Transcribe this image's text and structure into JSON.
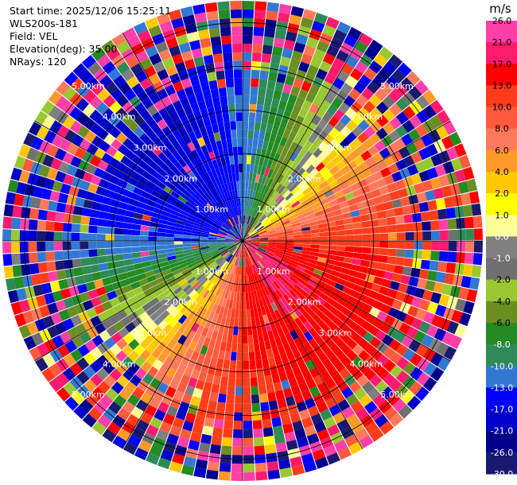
{
  "header": {
    "start_time": "Start time: 2025/12/06 15:25:11",
    "instrument": "WLS200s-181",
    "field": "Field: VEL",
    "elevation": "Elevation(deg): 35.00",
    "nrays": "NRays: 120"
  },
  "colorbar": {
    "unit": "m/s",
    "tick_labels": [
      "26.0",
      "21.0",
      "17.0",
      "13.0",
      "10.0",
      "8.0",
      "6.0",
      "4.0",
      "2.0",
      "1.0",
      "0.0",
      "-1.0",
      "-2.0",
      "-4.0",
      "-6.0",
      "-8.0",
      "-10.0",
      "-13.0",
      "-17.0",
      "-21.0",
      "-26.0",
      "-30.0"
    ],
    "bin_colors": [
      "#ff3fa8",
      "#ff1a6e",
      "#ff0000",
      "#ff3c1a",
      "#ff5a3c",
      "#ff7a5a",
      "#ff9a28",
      "#ffc800",
      "#ffff00",
      "#ffff96",
      "#808080",
      "#707070",
      "#9ac832",
      "#6b8e23",
      "#228b22",
      "#2e8b57",
      "#3278d2",
      "#0000ff",
      "#0000c8",
      "#00008b",
      "#191970"
    ]
  },
  "chart_data": {
    "type": "ppi",
    "field": "VEL",
    "units": "m/s",
    "elevation_deg": 35.0,
    "n_rays": 120,
    "range_ring_labels": [
      "1.00km",
      "2.00km",
      "3.00km",
      "4.00km",
      "5.00km"
    ],
    "range_max_km": 5.5,
    "velocity_pattern": {
      "positive_toward_azimuth_deg": 135,
      "max_speed_ms": 17,
      "min_speed_ms": -17
    }
  }
}
